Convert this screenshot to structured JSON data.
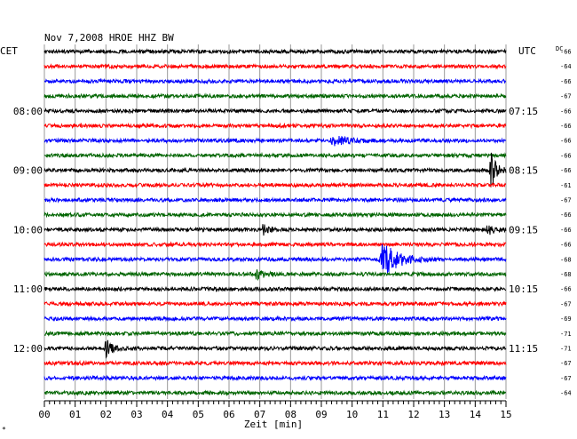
{
  "chart_data": {
    "type": "seismogram",
    "title": "Nov 7,2008   HROE HHZ BW",
    "left_axis_title": "CET",
    "right_axis_title": "UTC",
    "dc_label": "DC",
    "xlabel": "Zeit [min]",
    "xlim": [
      0,
      15
    ],
    "x_ticks": [
      "00",
      "01",
      "02",
      "03",
      "04",
      "05",
      "06",
      "07",
      "08",
      "09",
      "10",
      "11",
      "12",
      "13",
      "14",
      "15"
    ],
    "trace_colors": [
      "#000000",
      "#ff0000",
      "#0000ff",
      "#006400"
    ],
    "traces": 24,
    "hour_labels": [
      {
        "trace": 4,
        "cet": "08:00",
        "utc": "07:15"
      },
      {
        "trace": 8,
        "cet": "09:00",
        "utc": "08:15"
      },
      {
        "trace": 12,
        "cet": "10:00",
        "utc": "09:15"
      },
      {
        "trace": 16,
        "cet": "11:00",
        "utc": "10:15"
      },
      {
        "trace": 20,
        "cet": "12:00",
        "utc": "11:15"
      }
    ],
    "dc_values": [
      "-66",
      "-64",
      "-66",
      "-67",
      "-66",
      "-66",
      "-66",
      "-66",
      "-66",
      "-61",
      "-67",
      "-66",
      "-66",
      "-66",
      "-68",
      "-68",
      "-66",
      "-67",
      "-69",
      "-71",
      "-71",
      "-67",
      "-67",
      "-64"
    ],
    "events": [
      {
        "trace": 6,
        "minute": 9.4,
        "amplitude": 0.25,
        "duration": 1.8
      },
      {
        "trace": 8,
        "minute": 14.5,
        "amplitude": 1.0,
        "duration": 0.6
      },
      {
        "trace": 12,
        "minute": 7.1,
        "amplitude": 0.25,
        "duration": 0.6
      },
      {
        "trace": 12,
        "minute": 14.4,
        "amplitude": 0.35,
        "duration": 0.6
      },
      {
        "trace": 14,
        "minute": 11.0,
        "amplitude": 0.85,
        "duration": 1.8
      },
      {
        "trace": 15,
        "minute": 6.9,
        "amplitude": 0.3,
        "duration": 0.7
      },
      {
        "trace": 20,
        "minute": 2.0,
        "amplitude": 0.5,
        "duration": 0.7
      }
    ]
  },
  "corner_mark": "*"
}
